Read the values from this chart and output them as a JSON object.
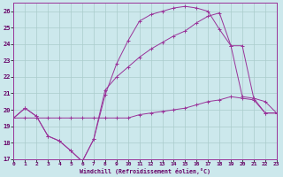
{
  "xlabel": "Windchill (Refroidissement éolien,°C)",
  "bg_color": "#cce8ec",
  "grid_color": "#aacccc",
  "line_color": "#993399",
  "xlim": [
    0,
    23
  ],
  "ylim": [
    17,
    26.5
  ],
  "yticks": [
    17,
    18,
    19,
    20,
    21,
    22,
    23,
    24,
    25,
    26
  ],
  "xticks": [
    0,
    1,
    2,
    3,
    4,
    5,
    6,
    7,
    8,
    9,
    10,
    11,
    12,
    13,
    14,
    15,
    16,
    17,
    18,
    19,
    20,
    21,
    22,
    23
  ],
  "curve1_x": [
    0,
    1,
    2,
    3,
    4,
    5,
    6,
    7,
    8,
    9,
    10,
    11,
    12,
    13,
    14,
    15,
    16,
    17,
    18,
    19,
    20,
    21,
    22,
    23
  ],
  "curve1_y": [
    19.5,
    19.5,
    19.5,
    19.5,
    19.5,
    19.5,
    19.5,
    19.5,
    19.5,
    19.5,
    19.5,
    19.7,
    19.8,
    19.9,
    20.0,
    20.1,
    20.3,
    20.5,
    20.6,
    20.8,
    20.7,
    20.6,
    19.8,
    19.8
  ],
  "curve2_x": [
    0,
    1,
    2,
    3,
    4,
    5,
    6,
    7,
    8,
    9,
    10,
    11,
    12,
    13,
    14,
    15,
    16,
    17,
    18,
    19,
    20,
    21,
    22,
    23
  ],
  "curve2_y": [
    19.5,
    20.1,
    19.6,
    18.4,
    18.1,
    17.5,
    16.85,
    18.2,
    20.9,
    22.8,
    24.2,
    25.4,
    25.8,
    26.0,
    26.2,
    26.3,
    26.2,
    26.0,
    24.9,
    23.9,
    20.8,
    20.7,
    19.8,
    19.8
  ],
  "curve3_x": [
    0,
    1,
    2,
    3,
    4,
    5,
    6,
    7,
    8,
    9,
    10,
    11,
    12,
    13,
    14,
    15,
    16,
    17,
    18,
    19,
    20,
    21,
    22,
    23
  ],
  "curve3_y": [
    19.5,
    20.1,
    19.6,
    18.4,
    18.1,
    17.5,
    16.85,
    18.2,
    21.2,
    22.0,
    22.6,
    23.2,
    23.7,
    24.1,
    24.5,
    24.8,
    25.3,
    25.7,
    25.9,
    23.9,
    23.9,
    20.7,
    20.5,
    19.8
  ]
}
